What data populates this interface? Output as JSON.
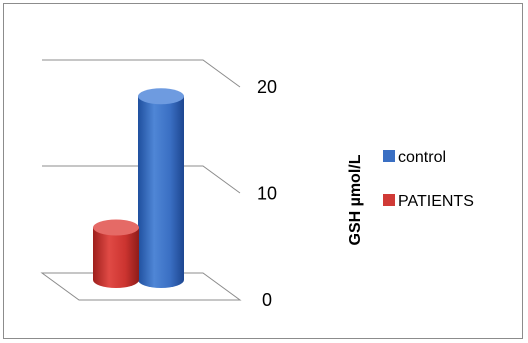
{
  "chart_data": {
    "type": "bar",
    "style": "3d-cylinder",
    "categories": [
      ""
    ],
    "series": [
      {
        "name": "control",
        "values": [
          17.5
        ],
        "color": "#3a6fc3"
      },
      {
        "name": "PATIENTS",
        "values": [
          5.0
        ],
        "color": "#d03a36"
      }
    ],
    "ylabel": "GSH µmol/L",
    "ylim": [
      0,
      20
    ],
    "yticks": [
      "0",
      "10",
      "20"
    ],
    "grid": true,
    "legend_position": "right",
    "title": "",
    "xlabel": ""
  }
}
